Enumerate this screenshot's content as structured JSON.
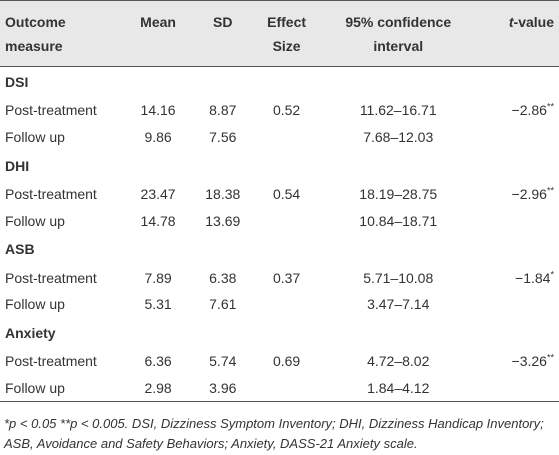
{
  "table": {
    "headers": {
      "outcome": "Outcome measure",
      "mean": "Mean",
      "sd": "SD",
      "effect": "Effect Size",
      "ci": "95% confidence interval",
      "t_prefix": "t",
      "t_suffix": "-value"
    },
    "groups": [
      {
        "label": "DSI",
        "rows": [
          {
            "name": "Post-treatment",
            "mean": "14.16",
            "sd": "8.87",
            "effect": "0.52",
            "ci": "11.62–16.71",
            "t": "−2.86",
            "sig": "**"
          },
          {
            "name": "Follow up",
            "mean": "9.86",
            "sd": "7.56",
            "effect": "",
            "ci": "7.68–12.03",
            "t": "",
            "sig": ""
          }
        ]
      },
      {
        "label": "DHI",
        "rows": [
          {
            "name": "Post-treatment",
            "mean": "23.47",
            "sd": "18.38",
            "effect": "0.54",
            "ci": "18.19–28.75",
            "t": "−2.96",
            "sig": "**"
          },
          {
            "name": "Follow up",
            "mean": "14.78",
            "sd": "13.69",
            "effect": "",
            "ci": "10.84–18.71",
            "t": "",
            "sig": ""
          }
        ]
      },
      {
        "label": "ASB",
        "rows": [
          {
            "name": "Post-treatment",
            "mean": "7.89",
            "sd": "6.38",
            "effect": "0.37",
            "ci": "5.71–10.08",
            "t": "−1.84",
            "sig": "*"
          },
          {
            "name": "Follow up",
            "mean": "5.31",
            "sd": "7.61",
            "effect": "",
            "ci": "3.47–7.14",
            "t": "",
            "sig": ""
          }
        ]
      },
      {
        "label": "Anxiety",
        "rows": [
          {
            "name": "Post-treatment",
            "mean": "6.36",
            "sd": "5.74",
            "effect": "0.69",
            "ci": "4.72–8.02",
            "t": "−3.26",
            "sig": "**"
          },
          {
            "name": "Follow up",
            "mean": "2.98",
            "sd": "3.96",
            "effect": "",
            "ci": "1.84–4.12",
            "t": "",
            "sig": ""
          }
        ]
      }
    ],
    "footnote": "*p < 0.05 **p < 0.005. DSI, Dizziness Symptom Inventory; DHI, Dizziness Handicap Inventory; ASB, Avoidance and Safety Behaviors; Anxiety, DASS-21 Anxiety scale."
  }
}
